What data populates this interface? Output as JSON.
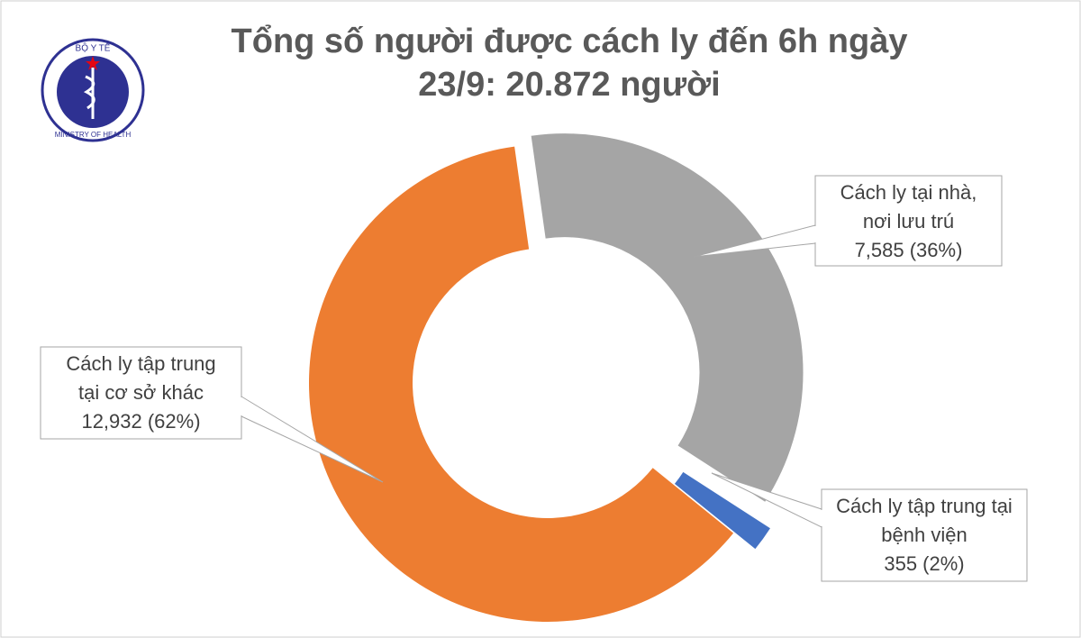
{
  "logo": {
    "top": "BỘ Y TẾ",
    "bottom": "MINISTRY OF HEALTH"
  },
  "chart_data": {
    "type": "donut",
    "title": [
      "Tổng số người được cách ly đến 6h ngày",
      "23/9: 20.872 người"
    ],
    "categories": [
      [
        "Cách ly tại nhà,",
        "nơi lưu trú"
      ],
      [
        "Cách ly tập trung tại",
        "bệnh viện"
      ],
      [
        "Cách ly tập trung",
        "tại cơ sở khác"
      ]
    ],
    "values": [
      7585,
      355,
      12932
    ],
    "value_labels": [
      "7,585 (36%)",
      "355 (2%)",
      "12,932 (62%)"
    ],
    "colors": [
      "#a5a5a5",
      "#4472c4",
      "#ed7d31"
    ]
  }
}
